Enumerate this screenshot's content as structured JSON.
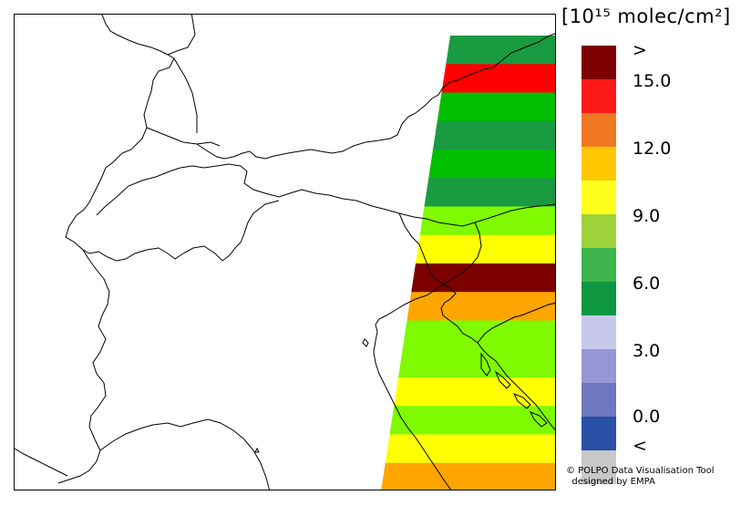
{
  "legend": {
    "unit_label": "[10¹⁵ molec/cm²]",
    "colors": [
      "#7d0000",
      "#ff1a1a",
      "#f07823",
      "#ffc800",
      "#ffff1e",
      "#9ed23a",
      "#3cb44b",
      "#0f9641",
      "#c8c8eb",
      "#9696d7",
      "#6e78be",
      "#2850a5",
      "#c8c8c8"
    ],
    "tick_labels": [
      ">",
      "15.0",
      "12.0",
      "9.0",
      "6.0",
      "3.0",
      "0.0",
      "<"
    ]
  },
  "credit": {
    "line1": "© POLPO Data Visualisation Tool",
    "line2": "designed by EMPA"
  },
  "swath": {
    "bands": [
      "#1a9a41",
      "#ff0000",
      "#00be00",
      "#1a9a41",
      "#00be00",
      "#1a9a41",
      "#7ffa00",
      "#ffff00",
      "#7d0000",
      "#ffa500",
      "#7ffa00",
      "#7ffa00",
      "#ffff00",
      "#7ffa00",
      "#ffff00",
      "#ffa500"
    ]
  }
}
